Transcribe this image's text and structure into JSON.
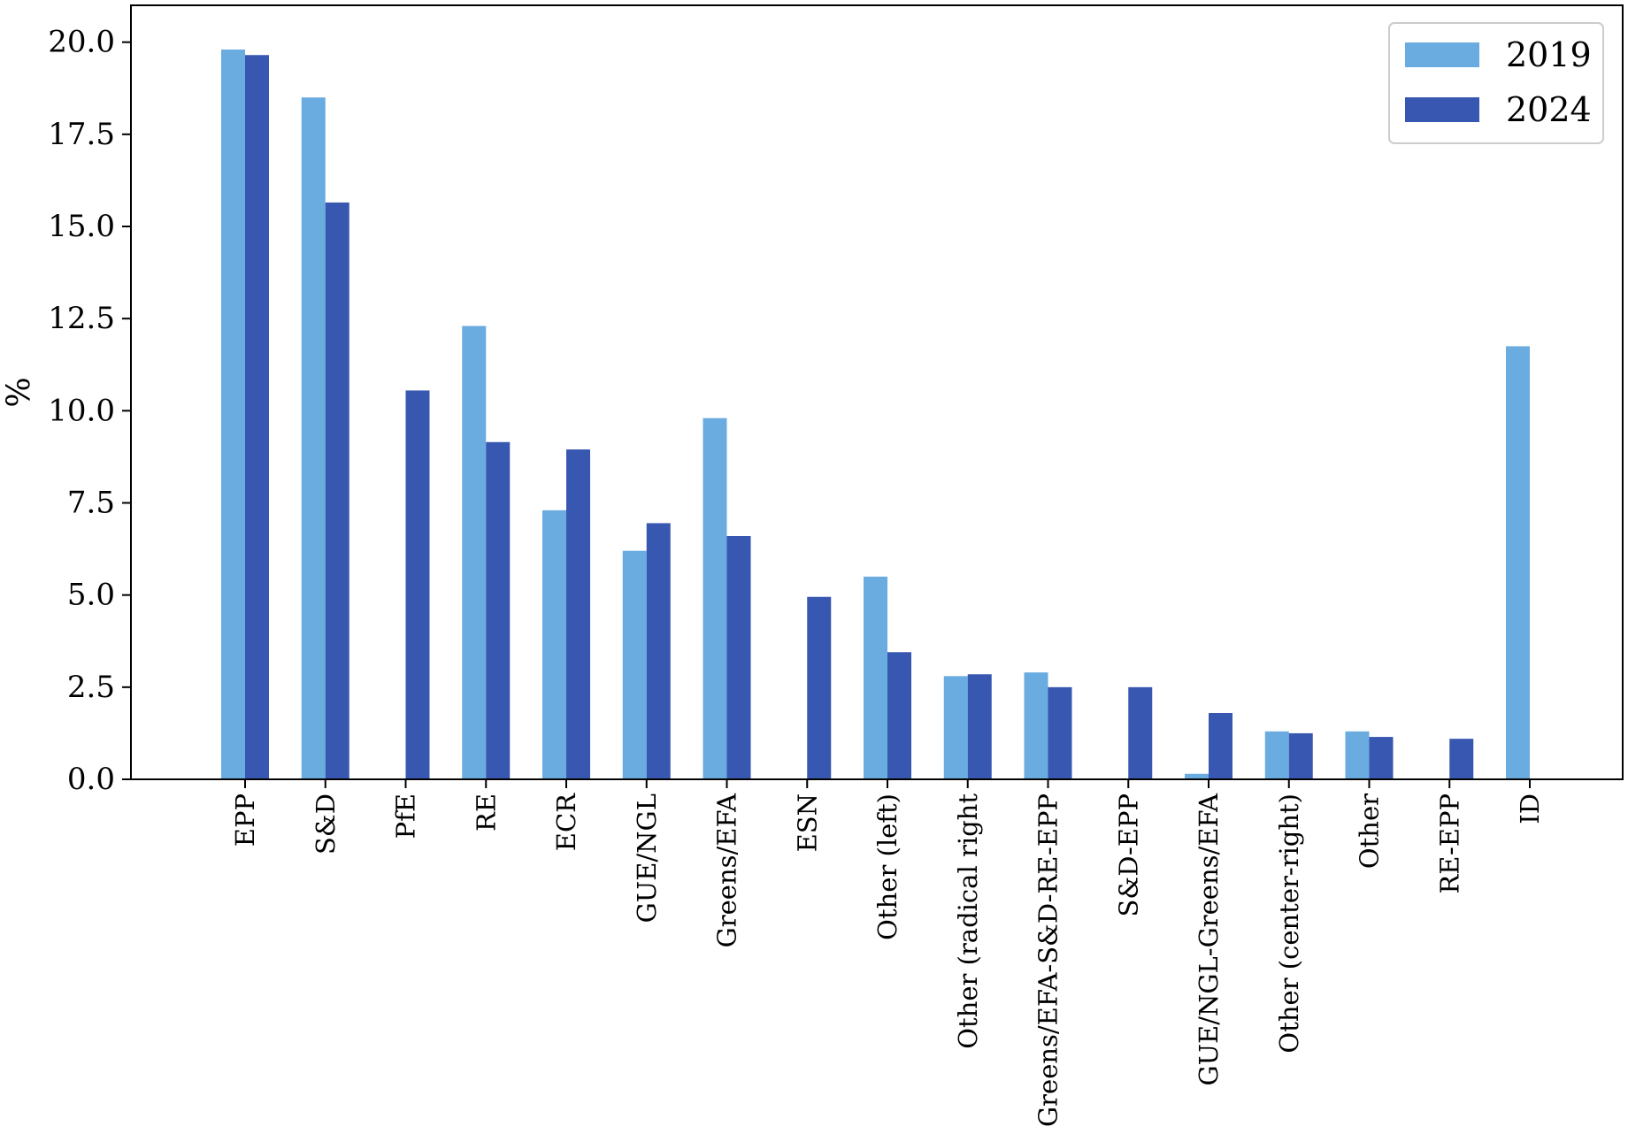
{
  "chart_data": {
    "type": "bar",
    "title": "",
    "xlabel": "",
    "ylabel": "%",
    "ylim": [
      0,
      21
    ],
    "yticks": [
      "0.0",
      "2.5",
      "5.0",
      "7.5",
      "10.0",
      "12.5",
      "15.0",
      "17.5",
      "20.0"
    ],
    "categories": [
      "EPP",
      "S&D",
      "PfE",
      "RE",
      "ECR",
      "GUE/NGL",
      "Greens/EFA",
      "ESN",
      "Other (left)",
      "Other (radical right",
      "Greens/EFA-S&D-RE-EPP",
      "S&D-EPP",
      "GUE/NGL-Greens/EFA",
      "Other (center-right)",
      "Other",
      "RE-EPP",
      "ID"
    ],
    "series": [
      {
        "name": "2019",
        "color": "#6aabe0",
        "values": [
          19.8,
          18.5,
          0.0,
          12.3,
          7.3,
          6.2,
          9.8,
          0.0,
          5.5,
          2.8,
          2.9,
          0.0,
          0.15,
          1.3,
          1.3,
          0.0,
          11.75
        ]
      },
      {
        "name": "2024",
        "color": "#3857b0",
        "values": [
          19.65,
          15.65,
          10.55,
          9.15,
          8.95,
          6.95,
          6.6,
          4.95,
          3.45,
          2.85,
          2.5,
          2.5,
          1.8,
          1.25,
          1.15,
          1.1,
          0.0
        ]
      }
    ],
    "legend_position": "top-right",
    "grid": false
  }
}
